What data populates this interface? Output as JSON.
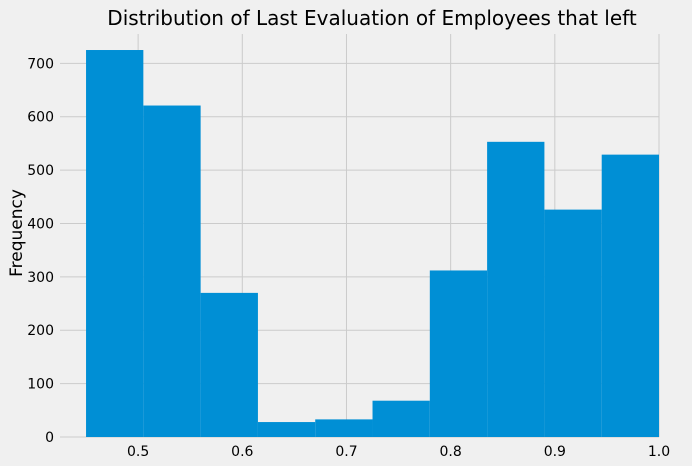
{
  "chart_data": {
    "type": "bar",
    "title": "Distribution of Last Evaluation of Employees that left",
    "xlabel": "",
    "ylabel": "Frequency",
    "bins": [
      {
        "x0": 0.45,
        "x1": 0.505,
        "count": 725
      },
      {
        "x0": 0.505,
        "x1": 0.56,
        "count": 621
      },
      {
        "x0": 0.56,
        "x1": 0.615,
        "count": 270
      },
      {
        "x0": 0.615,
        "x1": 0.67,
        "count": 28
      },
      {
        "x0": 0.67,
        "x1": 0.725,
        "count": 33
      },
      {
        "x0": 0.725,
        "x1": 0.78,
        "count": 68
      },
      {
        "x0": 0.78,
        "x1": 0.835,
        "count": 312
      },
      {
        "x0": 0.835,
        "x1": 0.89,
        "count": 553
      },
      {
        "x0": 0.89,
        "x1": 0.945,
        "count": 426
      },
      {
        "x0": 0.945,
        "x1": 1.0,
        "count": 529
      }
    ],
    "xlim": [
      0.425,
      1.0
    ],
    "ylim": [
      0,
      755
    ],
    "xticks": [
      0.5,
      0.6,
      0.7,
      0.8,
      0.9,
      1.0
    ],
    "xtick_labels": [
      "0.5",
      "0.6",
      "0.7",
      "0.8",
      "0.9",
      "1.0"
    ],
    "yticks": [
      0,
      100,
      200,
      300,
      400,
      500,
      600,
      700
    ],
    "ytick_labels": [
      "0",
      "100",
      "200",
      "300",
      "400",
      "500",
      "600",
      "700"
    ],
    "grid": true,
    "bar_color": "#008fd5",
    "background_color": "#f0f0f0",
    "grid_color": "#cbcbcb"
  }
}
